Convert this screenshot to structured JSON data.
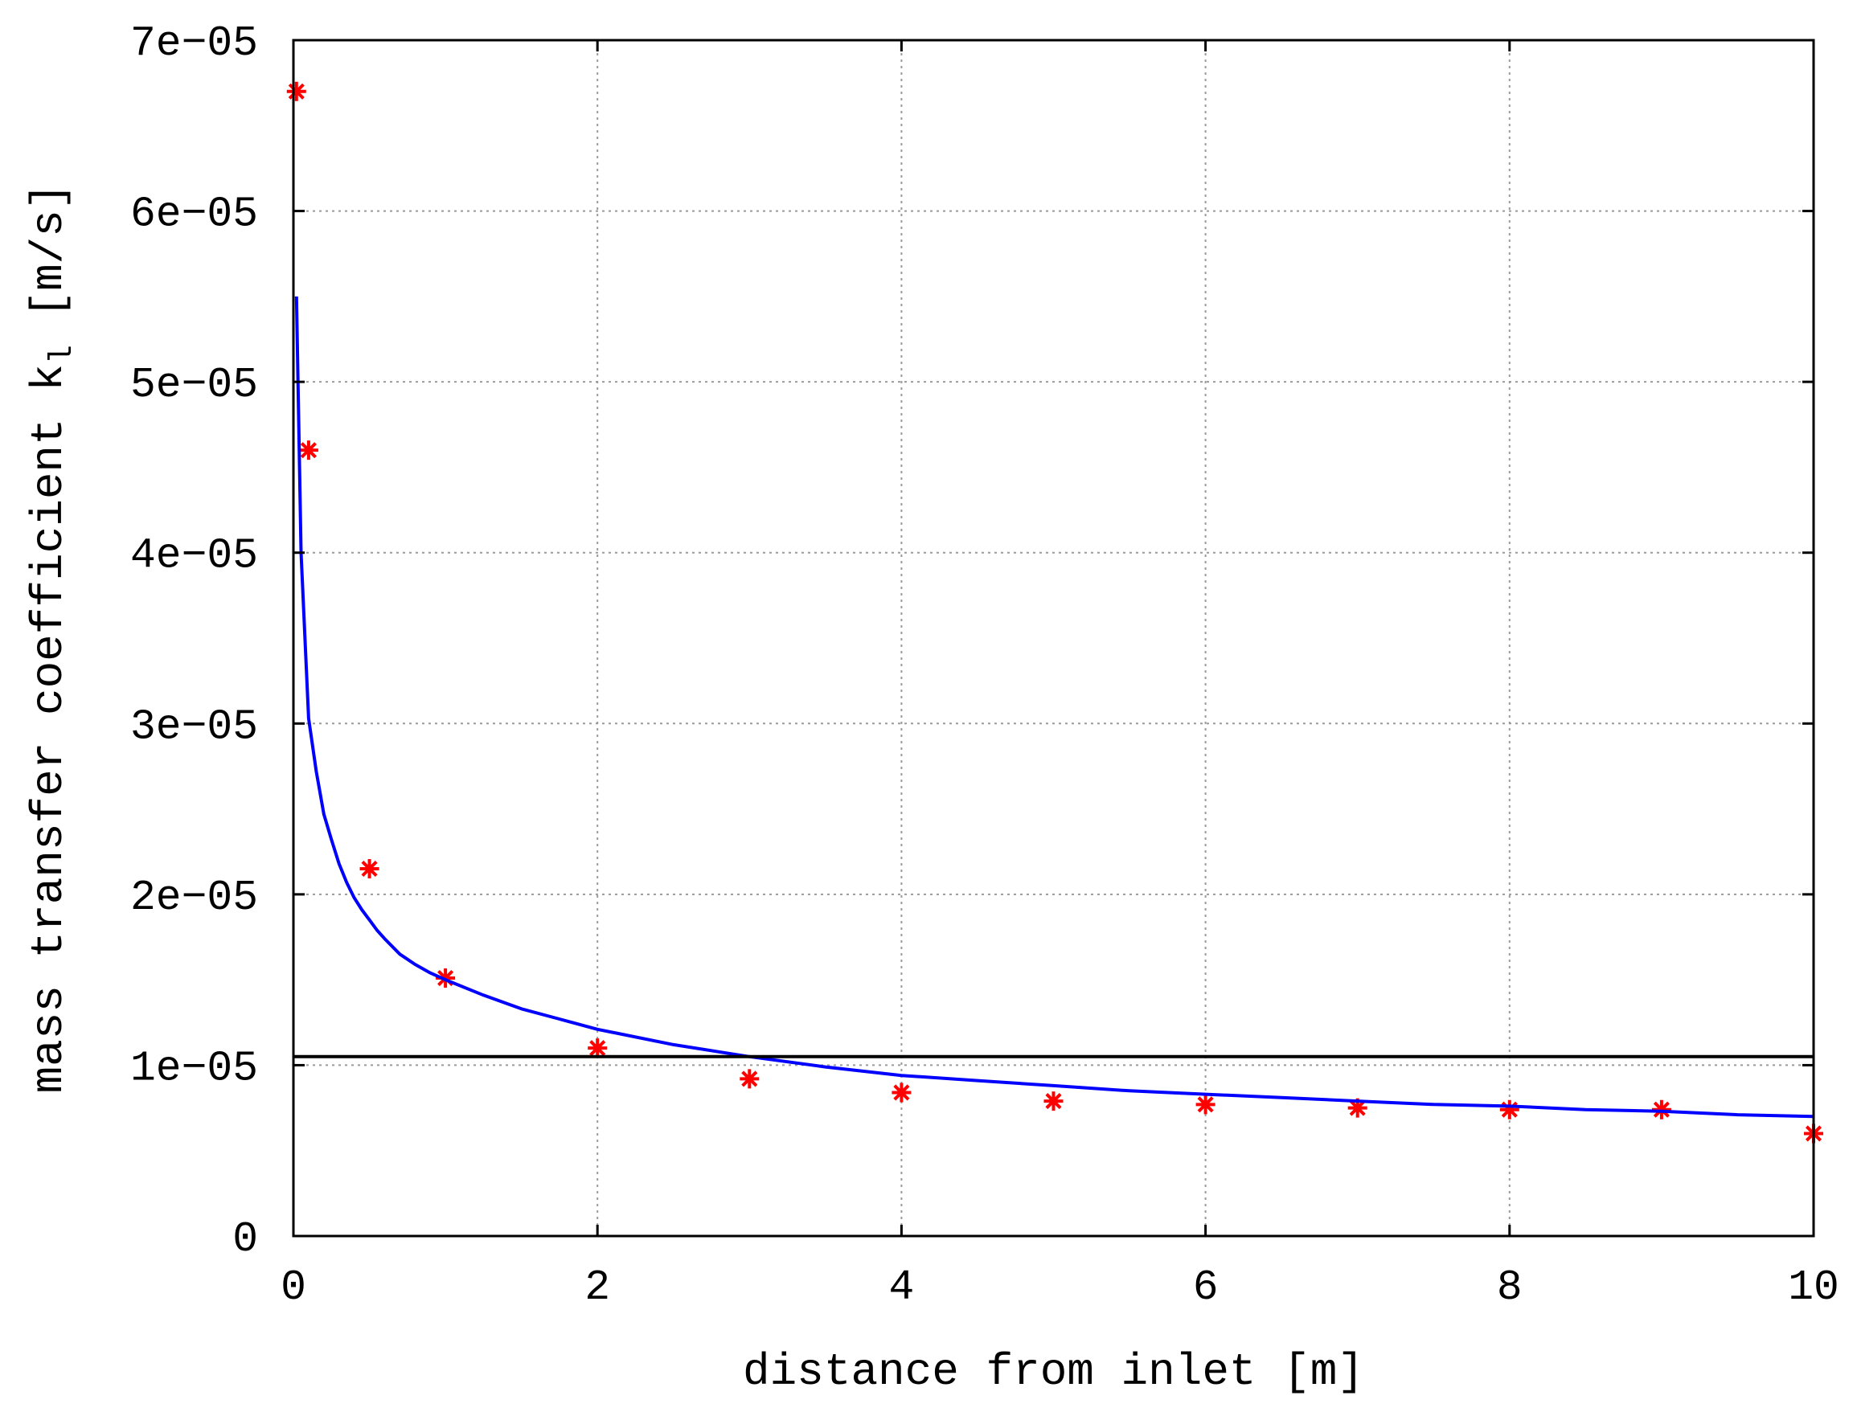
{
  "chart_data": {
    "type": "scatter",
    "title": "",
    "xlabel": "distance from inlet [m]",
    "ylabel": {
      "main": "mass transfer coefficient k",
      "subscript": "l",
      "unit": "[m/s]"
    },
    "xlim": [
      0,
      10
    ],
    "ylim": [
      0,
      7e-05
    ],
    "x_ticks": [
      0,
      2,
      4,
      6,
      8,
      10
    ],
    "x_tick_labels": [
      "0",
      "2",
      "4",
      "6",
      "8",
      "10"
    ],
    "y_ticks": [
      0,
      1e-05,
      2e-05,
      3e-05,
      4e-05,
      5e-05,
      6e-05,
      7e-05
    ],
    "y_tick_labels": [
      "0",
      "1e−05",
      "2e−05",
      "3e−05",
      "4e−05",
      "5e−05",
      "6e−05",
      "7e−05"
    ],
    "grid": true,
    "legend": "none",
    "series": [
      {
        "type": "scatter",
        "marker": "asterisk",
        "color": "#ff0000",
        "x": [
          0.02,
          0.1,
          0.5,
          1,
          2,
          3,
          4,
          5,
          6,
          7,
          8,
          9,
          10
        ],
        "y": [
          6.7e-05,
          4.6e-05,
          2.15e-05,
          1.51e-05,
          1.1e-05,
          9.2e-06,
          8.4e-06,
          7.9e-06,
          7.7e-06,
          7.5e-06,
          7.4e-06,
          7.4e-06,
          6e-06
        ]
      },
      {
        "type": "line",
        "color": "#0000ff",
        "x": [
          0.02,
          0.05,
          0.1,
          0.15,
          0.2,
          0.25,
          0.3,
          0.35,
          0.4,
          0.45,
          0.5,
          0.55,
          0.6,
          0.7,
          0.8,
          0.9,
          1.0,
          1.25,
          1.5,
          1.75,
          2.0,
          2.5,
          3.0,
          3.5,
          4.0,
          4.5,
          5.0,
          5.5,
          6.0,
          6.5,
          7.0,
          7.5,
          8.0,
          8.5,
          9.0,
          9.5,
          10.0
        ],
        "y": [
          5.5e-05,
          4e-05,
          3.03e-05,
          2.72e-05,
          2.47e-05,
          2.32e-05,
          2.18e-05,
          2.07e-05,
          1.98e-05,
          1.91e-05,
          1.85e-05,
          1.79e-05,
          1.74e-05,
          1.65e-05,
          1.59e-05,
          1.54e-05,
          1.5e-05,
          1.41e-05,
          1.33e-05,
          1.27e-05,
          1.21e-05,
          1.12e-05,
          1.05e-05,
          9.9e-06,
          9.4e-06,
          9.1e-06,
          8.8e-06,
          8.5e-06,
          8.3e-06,
          8.1e-06,
          7.9e-06,
          7.7e-06,
          7.6e-06,
          7.4e-06,
          7.3e-06,
          7.1e-06,
          7e-06
        ]
      },
      {
        "type": "hline",
        "color": "#000000",
        "y": 1.05e-05
      }
    ]
  }
}
